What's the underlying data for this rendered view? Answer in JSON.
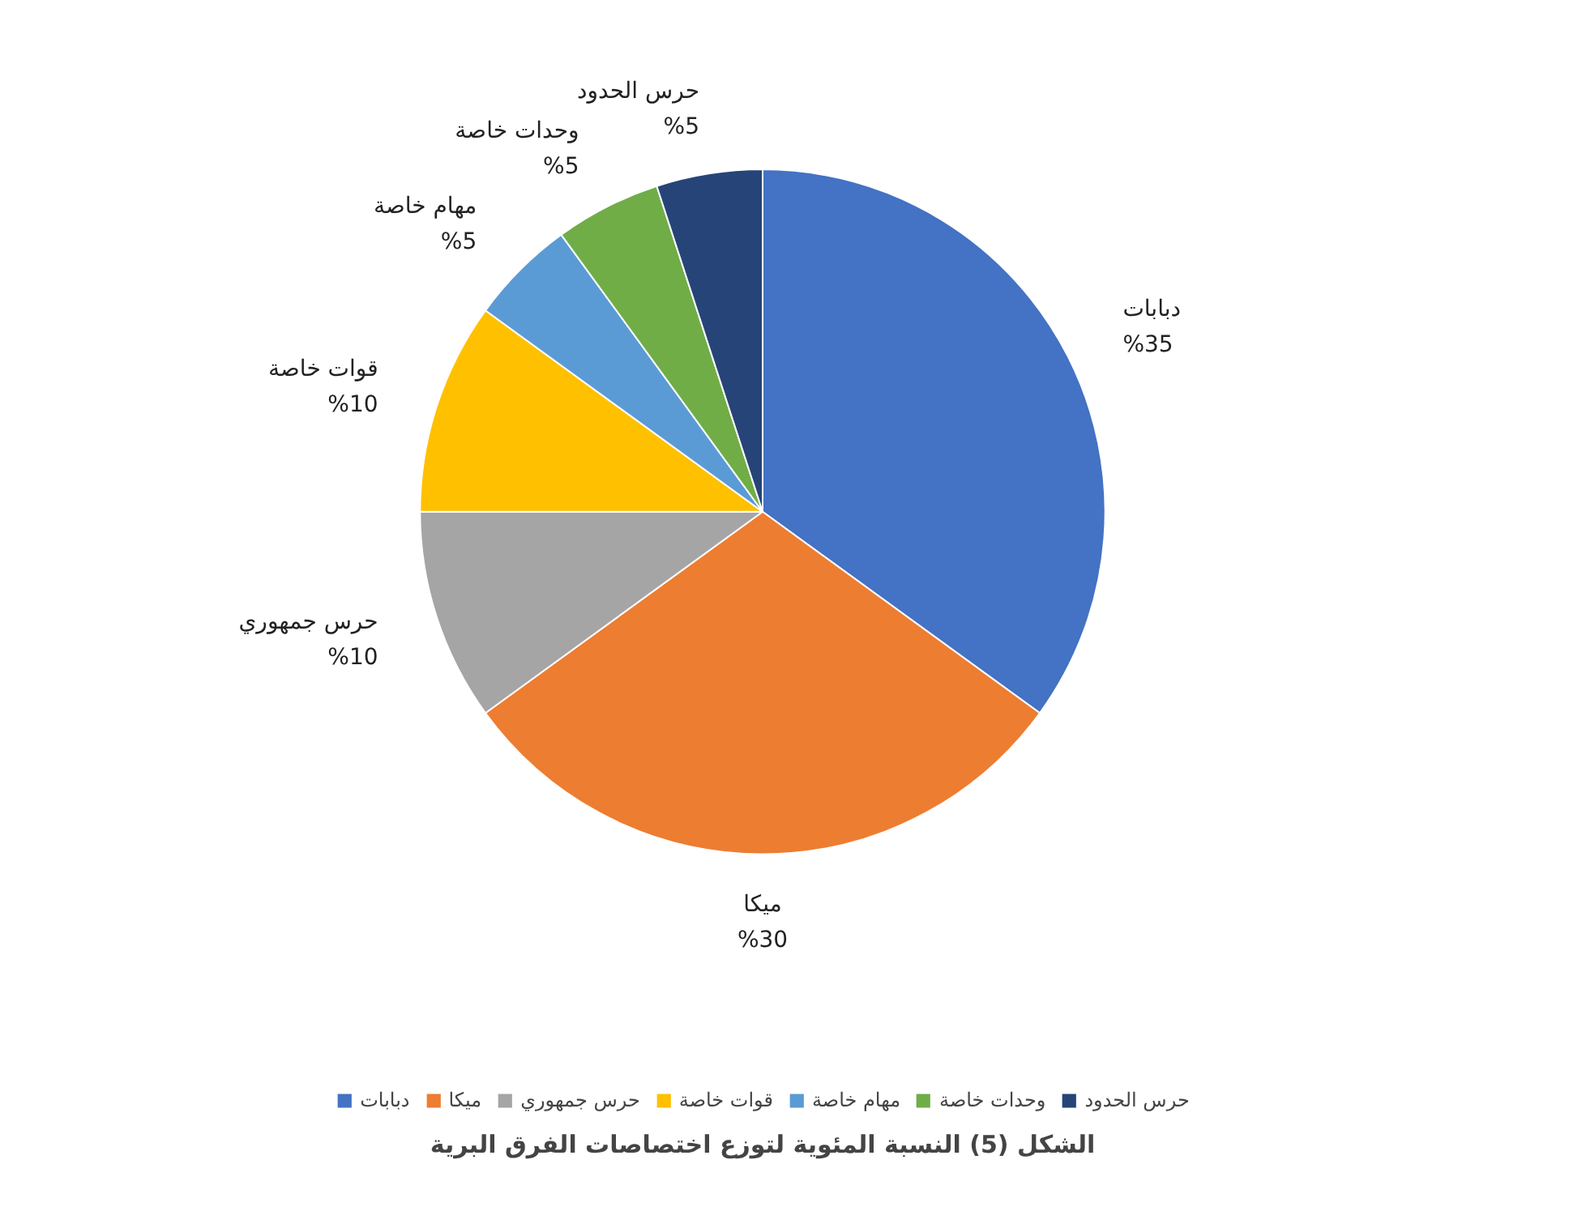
{
  "chart_data": {
    "type": "pie",
    "title": "الشكل (5) النسبة المئوية لتوزع اختصاصات الفرق البرية",
    "categories": [
      "دبابات",
      "ميكا",
      "حرس جمهوري",
      "قوات خاصة",
      "مهام خاصة",
      "وحدات خاصة",
      "حرس الحدود"
    ],
    "values": [
      35,
      30,
      10,
      10,
      5,
      5,
      5
    ],
    "colors": [
      "#4472c4",
      "#ed7d31",
      "#a5a5a5",
      "#ffc000",
      "#5b9bd5",
      "#70ad47",
      "#264478"
    ],
    "value_labels": [
      "%35",
      "%30",
      "%10",
      "%10",
      "%5",
      "%5",
      "%5"
    ],
    "legend": "bottom"
  }
}
